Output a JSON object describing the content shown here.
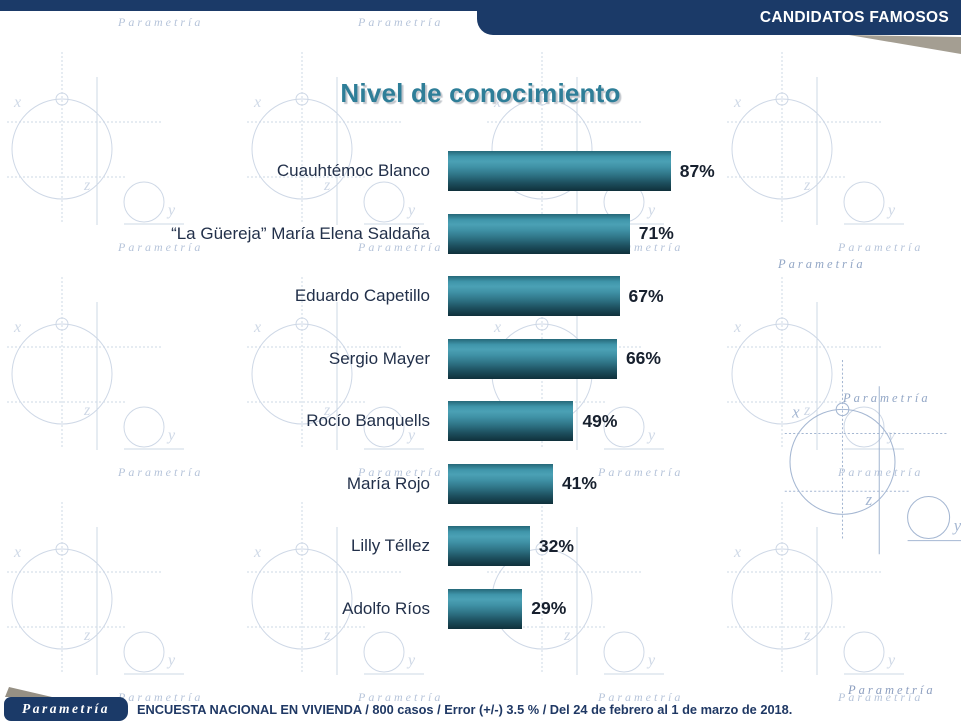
{
  "top_banner": {
    "label": "CANDIDATOS FAMOSOS",
    "bg_color": "#1B3A68",
    "text_color": "#FFFFFF"
  },
  "title": {
    "text": "Nivel de conocimiento",
    "color": "#2E7E98"
  },
  "chart_data": {
    "type": "bar",
    "orientation": "horizontal",
    "title": "Nivel de conocimiento",
    "categories": [
      "Cuauhtémoc Blanco",
      "“La Güereja” María Elena Saldaña",
      "Eduardo Capetillo",
      "Sergio Mayer",
      "Rocío Banquells",
      "María Rojo",
      "Lilly Téllez",
      "Adolfo Ríos"
    ],
    "values": [
      87,
      71,
      67,
      66,
      49,
      41,
      32,
      29
    ],
    "unit": "%",
    "xlim": [
      0,
      100
    ],
    "grid": false,
    "legend": false,
    "bar_color_top": "#4BA1B5",
    "bar_color_bottom": "#0F303B",
    "value_labels": [
      "87%",
      "71%",
      "67%",
      "66%",
      "49%",
      "41%",
      "32%",
      "29%"
    ]
  },
  "footer": {
    "logo_text": "Parametría",
    "logo_bg": "#1B3A68",
    "note": "ENCUESTA NACIONAL EN VIVIENDA / 800 casos / Error (+/-) 3.5 % / Del 24 de febrero  al 1 de marzo de 2018."
  },
  "watermark_text": "Parametría"
}
